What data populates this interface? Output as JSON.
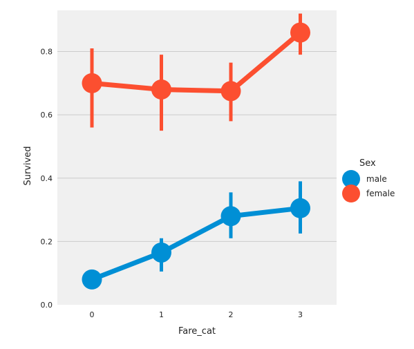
{
  "chart_data": {
    "type": "line",
    "title": "",
    "xlabel": "Fare_cat",
    "ylabel": "Survived",
    "categories": [
      "0",
      "1",
      "2",
      "3"
    ],
    "ylim": [
      0.0,
      0.93
    ],
    "yticks": [
      "0.0",
      "0.2",
      "0.4",
      "0.6",
      "0.8"
    ],
    "grid": "horizontal",
    "legend": {
      "title": "Sex",
      "position": "right"
    },
    "series": [
      {
        "name": "male",
        "color": "#008fd5",
        "values": [
          0.08,
          0.165,
          0.28,
          0.305
        ],
        "ci_low": [
          0.065,
          0.105,
          0.21,
          0.225
        ],
        "ci_high": [
          0.095,
          0.21,
          0.355,
          0.39
        ]
      },
      {
        "name": "female",
        "color": "#fc4f30",
        "values": [
          0.7,
          0.68,
          0.675,
          0.86
        ],
        "ci_low": [
          0.56,
          0.55,
          0.58,
          0.79
        ],
        "ci_high": [
          0.81,
          0.79,
          0.765,
          0.92
        ]
      }
    ]
  }
}
